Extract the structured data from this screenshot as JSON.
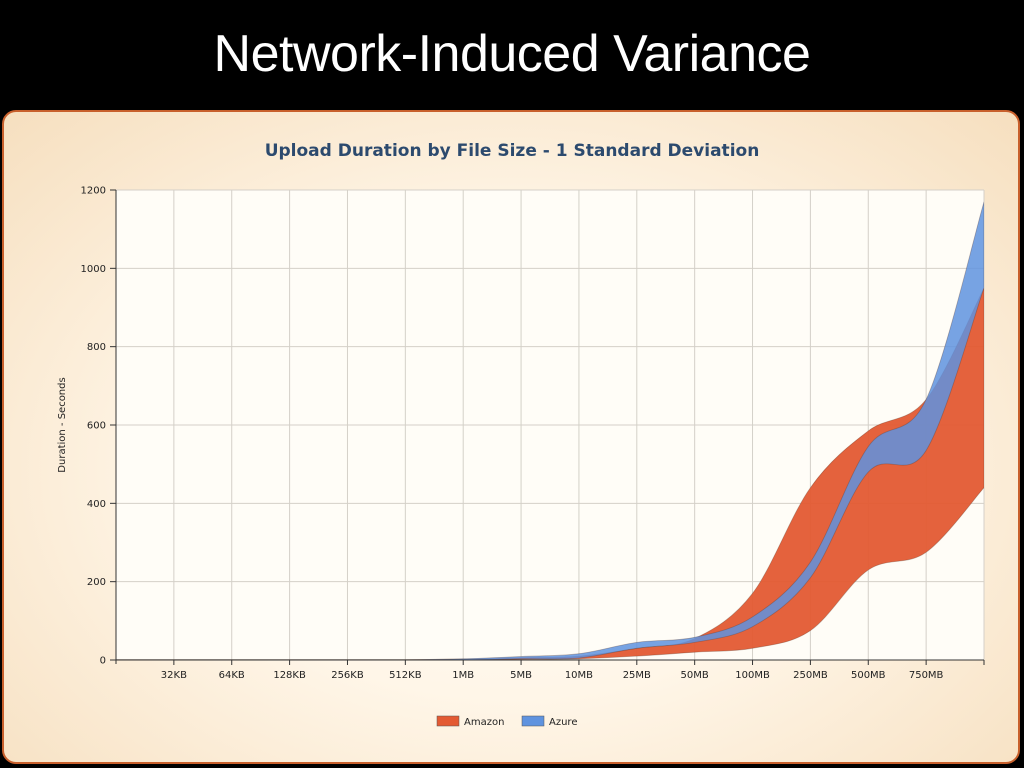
{
  "slide": {
    "title": "Network-Induced Variance"
  },
  "colors": {
    "amazon": "#e35a33",
    "azure": "#5f93df",
    "overlap": "#5a75c7",
    "panel_border": "#c8602c",
    "title_text": "#2c4a6e"
  },
  "chart_data": {
    "type": "area",
    "title": "Upload Duration by File Size - 1 Standard Deviation",
    "xlabel": "",
    "ylabel": "Duration - Seconds",
    "ylim": [
      0,
      1200
    ],
    "yticks": [
      0,
      200,
      400,
      600,
      800,
      1000,
      1200
    ],
    "categories": [
      "32KB",
      "64KB",
      "128KB",
      "256KB",
      "512KB",
      "1MB",
      "5MB",
      "10MB",
      "25MB",
      "50MB",
      "100MB",
      "250MB",
      "500MB",
      "750MB",
      ""
    ],
    "grid": true,
    "legend_position": "bottom",
    "series": [
      {
        "name": "Amazon",
        "color": "#e35a33",
        "x": [
          "",
          "32KB",
          "64KB",
          "128KB",
          "256KB",
          "512KB",
          "1MB",
          "5MB",
          "10MB",
          "25MB",
          "50MB",
          "100MB",
          "250MB",
          "500MB",
          "750MB",
          ""
        ],
        "lower": [
          0,
          0,
          0,
          0,
          0,
          0,
          0,
          2,
          3,
          10,
          20,
          30,
          75,
          230,
          275,
          440
        ],
        "upper": [
          1,
          1,
          1,
          1,
          1,
          1,
          2,
          6,
          10,
          30,
          55,
          170,
          440,
          585,
          665,
          950
        ]
      },
      {
        "name": "Azure",
        "color": "#5f93df",
        "x": [
          "",
          "32KB",
          "64KB",
          "128KB",
          "256KB",
          "512KB",
          "1MB",
          "5MB",
          "10MB",
          "25MB",
          "50MB",
          "100MB",
          "250MB",
          "500MB",
          "750MB",
          ""
        ],
        "lower": [
          0,
          0,
          0,
          0,
          0,
          0,
          0,
          3,
          5,
          30,
          45,
          85,
          210,
          480,
          535,
          950
        ],
        "upper": [
          1,
          1,
          1,
          1,
          1,
          1,
          3,
          9,
          16,
          45,
          58,
          110,
          250,
          545,
          665,
          1170
        ]
      }
    ]
  }
}
